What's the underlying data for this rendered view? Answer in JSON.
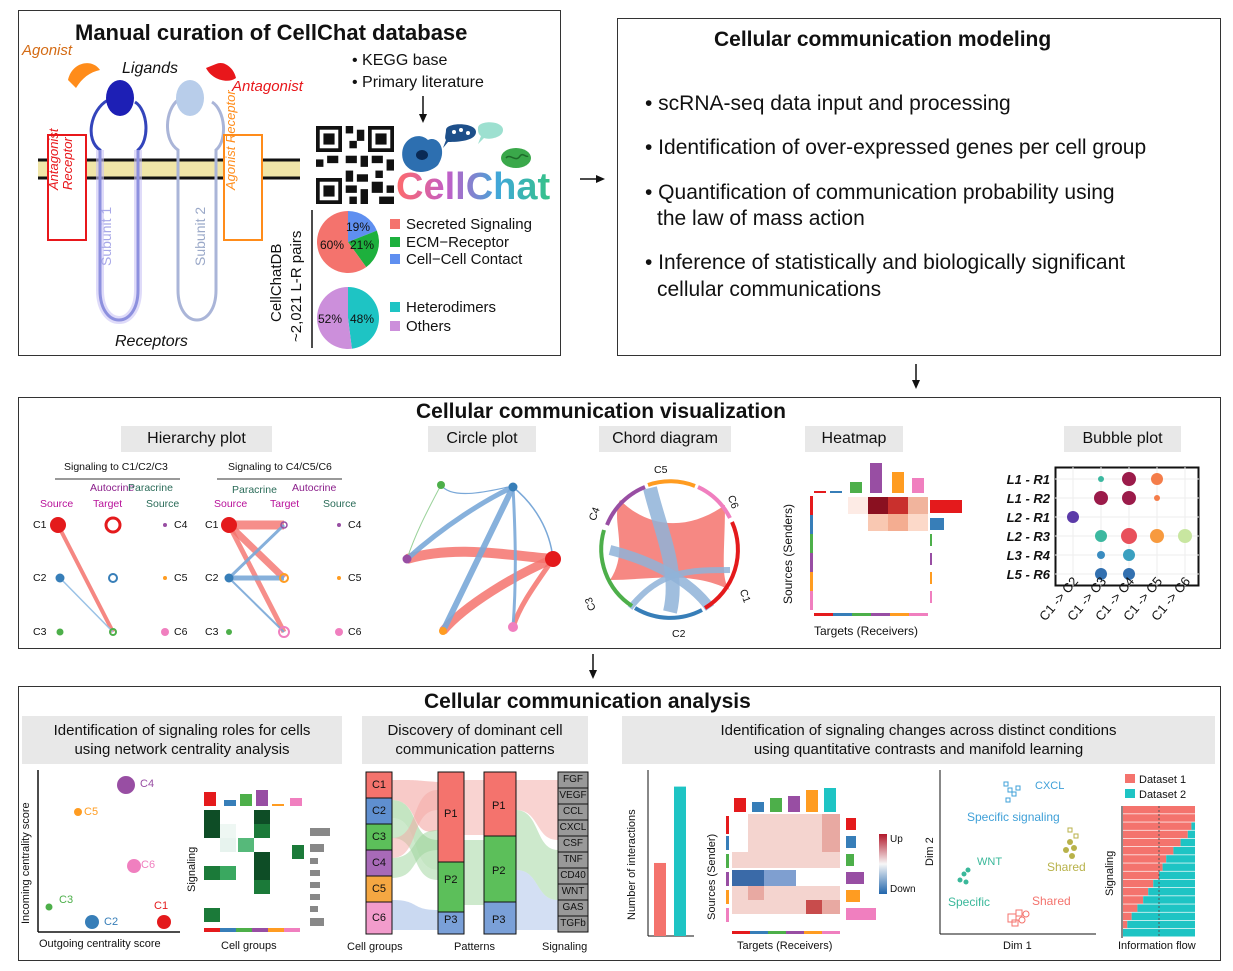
{
  "panel1": {
    "title": "Manual curation of CellChat database",
    "agonist": "Agonist",
    "antagonist": "Antagonist",
    "ligands": "Ligands",
    "receptors": "Receptors",
    "subunit1": "Subunit 1",
    "subunit2": "Subunit 2",
    "antagonist_receptor": "Antagonist Receptor",
    "agonist_receptor": "Agonist Receptor",
    "sources": [
      "• KEGG base",
      "• Primary literature"
    ],
    "logo": "CellChat",
    "db_label_1": "CellChatDB",
    "db_label_2": "~2,021 L-R pairs",
    "pie1": {
      "slices": [
        {
          "label": "Secreted Signaling",
          "value": 60,
          "text": "60%",
          "color": "#f4736d"
        },
        {
          "label": "ECM−Receptor",
          "value": 21,
          "text": "21%",
          "color": "#1db03d"
        },
        {
          "label": "Cell−Cell Contact",
          "value": 19,
          "text": "19%",
          "color": "#5f8ff0"
        }
      ]
    },
    "pie2": {
      "slices": [
        {
          "label": "Heterodimers",
          "value": 48,
          "text": "48%",
          "color": "#1ec4c4"
        },
        {
          "label": "Others",
          "value": 52,
          "text": "52%",
          "color": "#cc8fdb"
        }
      ]
    }
  },
  "panel2": {
    "title": "Cellular communication modeling",
    "bullets": [
      "• scRNA-seq data input and processing",
      "• Identification of over-expressed genes per cell group",
      "• Quantification of communication probability using",
      "the law of mass action",
      "• Inference of statistically and biologically significant",
      "cellular communications"
    ]
  },
  "panel3": {
    "title": "Cellular communication visualization",
    "hierarchy": {
      "label": "Hierarchy plot",
      "left_header": "Signaling to C1/C2/C3",
      "right_header": "Signaling to C4/C5/C6",
      "autocrine": "Autocrine",
      "paracrine": "Paracrine",
      "source": "Source",
      "target": "Target",
      "cells": [
        "C1",
        "C2",
        "C3",
        "C4",
        "C5",
        "C6"
      ]
    },
    "circle": {
      "label": "Circle plot"
    },
    "chord": {
      "label": "Chord diagram",
      "cells": [
        "C5",
        "C6",
        "C1",
        "C2",
        "C3",
        "C4"
      ]
    },
    "heatmap": {
      "label": "Heatmap",
      "ylabel": "Sources (Senders)",
      "xlabel": "Targets (Receivers)"
    },
    "bubble": {
      "label": "Bubble plot",
      "rows": [
        "L1 - R1",
        "L1 - R2",
        "L2 - R1",
        "L2 - R3",
        "L3 - R4",
        "L5 - R6"
      ],
      "cols": [
        "C1 -> C2",
        "C1 -> C3",
        "C1 -> C4",
        "C1 -> C5",
        "C1 -> C6"
      ]
    }
  },
  "panel4": {
    "title": "Cellular communication analysis",
    "sec1": {
      "label_1": "Identification of signaling roles for cells",
      "label_2": "using network centrality analysis",
      "ylabel": "Incoming centrality score",
      "xlabel": "Outgoing centrality score",
      "points": [
        "C4",
        "C5",
        "C6",
        "C3",
        "C2",
        "C1"
      ],
      "hm_ylabel": "Signaling",
      "hm_xlabel": "Cell groups"
    },
    "sec2": {
      "label_1": "Discovery of dominant cell",
      "label_2": "communication patterns",
      "cells": [
        "C1",
        "C2",
        "C3",
        "C4",
        "C5",
        "C6"
      ],
      "patterns": [
        "P1",
        "P2",
        "P3"
      ],
      "signaling": [
        "FGF",
        "VEGF",
        "CCL",
        "CXCL",
        "CSF",
        "TNF",
        "CD40",
        "WNT",
        "GAS",
        "TGFb"
      ],
      "axis_cells": "Cell groups",
      "axis_patterns": "Patterns",
      "axis_signaling": "Signaling"
    },
    "sec3": {
      "label_1": "Identification of signaling changes across distinct conditions",
      "label_2": "using quantitative contrasts and manifold learning",
      "bar_ylabel": "Number of interactions",
      "bar_values": [
        22,
        45
      ],
      "hm_ylabel": "Sources (Sender)",
      "hm_xlabel": "Targets (Receivers)",
      "up": "Up",
      "down": "Down",
      "dim2": "Dim 2",
      "dim1": "Dim 1",
      "cxcl": "CXCL",
      "specific_signaling": "Specific signaling",
      "shared1": "Shared",
      "wnt": "WNT",
      "specific": "Specific",
      "shared2": "Shared",
      "legend": [
        "Dataset 1",
        "Dataset 2"
      ],
      "flow_ylabel": "Signaling",
      "flow_xlabel": "Information flow"
    }
  },
  "colors": {
    "c1": "#e41a1c",
    "c2": "#377eb8",
    "c3": "#4daf4a",
    "c4": "#984ea3",
    "c5": "#ff9c21",
    "c6": "#f07fbf",
    "red": "#f4736d",
    "teal": "#1ec4c4",
    "dark_green": "#0e4d26"
  }
}
